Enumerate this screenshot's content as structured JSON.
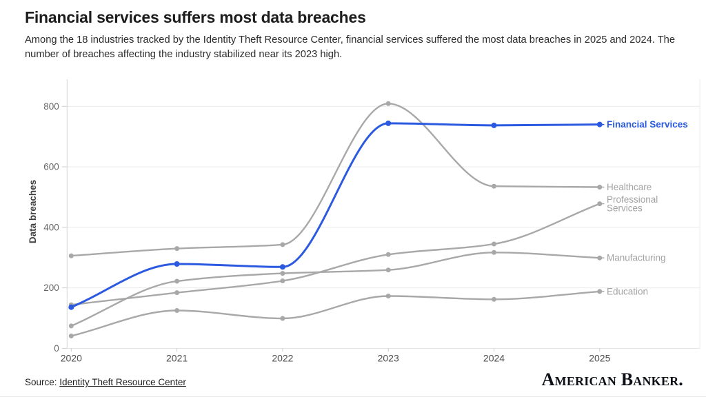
{
  "header": {
    "title": "Financial services suffers most data breaches",
    "subtitle": "Among the 18 industries tracked by the Identity Theft Resource Center, financial services suffered the most data breaches in 2025 and 2024. The number of breaches affecting the industry stabilized near its 2023 high."
  },
  "chart_data": {
    "type": "line",
    "categories": [
      "2020",
      "2021",
      "2022",
      "2023",
      "2024",
      "2025"
    ],
    "series": [
      {
        "name": "Healthcare",
        "values": [
          306,
          330,
          343,
          809,
          536,
          533
        ],
        "color": "#a8a8a8",
        "emphasis": false
      },
      {
        "name": "Education",
        "values": [
          41,
          125,
          99,
          173,
          162,
          188
        ],
        "color": "#a8a8a8",
        "emphasis": false
      },
      {
        "name": "Manufacturing",
        "values": [
          74,
          222,
          248,
          259,
          317,
          299
        ],
        "color": "#a8a8a8",
        "emphasis": false
      },
      {
        "name": "Professional Services",
        "values": [
          144,
          184,
          223,
          310,
          345,
          478
        ],
        "color": "#a8a8a8",
        "emphasis": false,
        "label_lines": [
          "Professional",
          "Services"
        ]
      },
      {
        "name": "Financial Services",
        "values": [
          136,
          279,
          269,
          744,
          737,
          740
        ],
        "color": "#2b59e0",
        "emphasis": true
      }
    ],
    "title": "Financial services suffers most data breaches",
    "xlabel": "",
    "ylabel": "Data breaches",
    "yticks": [
      0,
      200,
      400,
      600,
      800
    ],
    "ylim": [
      0,
      880
    ],
    "grid": "horizontal",
    "legend_position": "right-inline-labels",
    "curve": "monotone"
  },
  "colors": {
    "accent": "#2b59e0",
    "muted_series": "#a8a8a8",
    "muted_label": "#a2a2a2",
    "grid": "#ececec",
    "zero_line": "#e2e2e2",
    "axis_line": "#d6d6d6",
    "right_border": "#e9e9e9",
    "tick_mark": "#cfcfcf",
    "ytick_text": "#666666",
    "xtick_text": "#4d4d4d",
    "axis_title_text": "#3e3e3e"
  },
  "footer": {
    "source_prefix": "Source: ",
    "source_link_text": "Identity Theft Resource Center",
    "brand": "American Banker."
  }
}
